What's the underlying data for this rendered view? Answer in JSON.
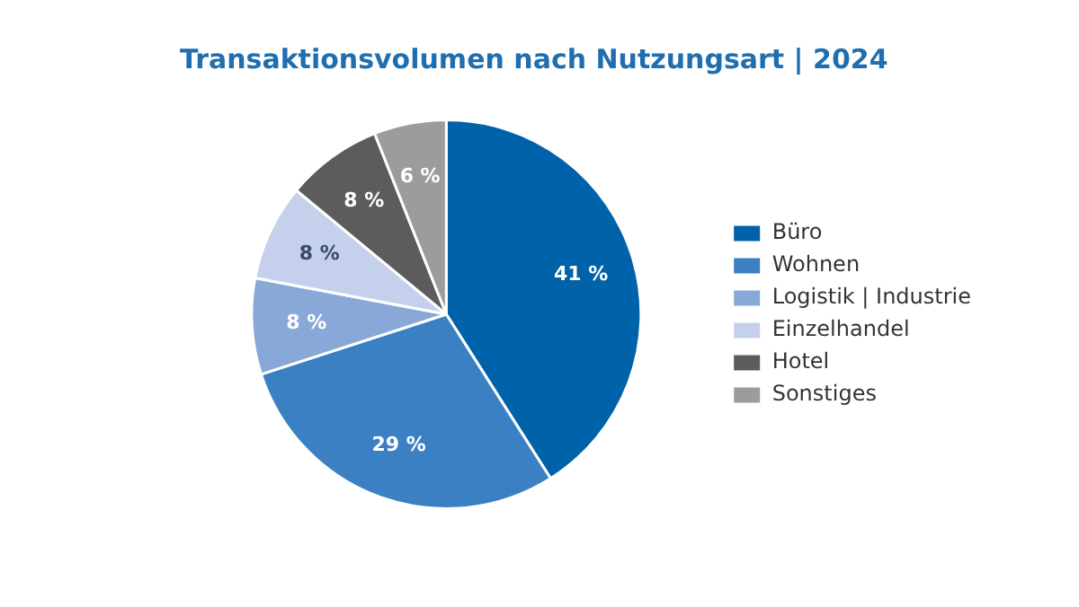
{
  "chart_data": {
    "type": "pie",
    "title": "Transaktionsvolumen nach Nutzungsart | 2024",
    "categories": [
      "Büro",
      "Wohnen",
      "Logistik | Industrie",
      "Einzelhandel",
      "Hotel",
      "Sonstiges"
    ],
    "values": [
      41,
      29,
      8,
      8,
      8,
      6
    ],
    "value_labels": [
      "41 %",
      "29 %",
      "8 %",
      "8 %",
      "8 %",
      "6 %"
    ],
    "colors": [
      "#0062a8",
      "#3b80c3",
      "#88a8d8",
      "#c5d0ec",
      "#5c5c5c",
      "#9c9c9c"
    ],
    "legend": "right"
  }
}
